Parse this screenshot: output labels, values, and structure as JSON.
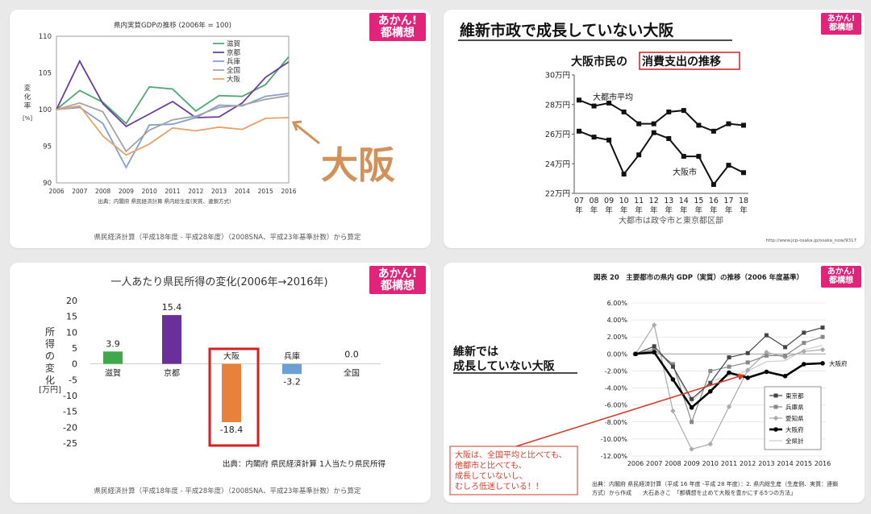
{
  "badge": {
    "line1": "あかん!",
    "line2": "都構想"
  },
  "chart_data": [
    {
      "type": "line",
      "title": "県内実質GDPの推移 (2006年 = 100)",
      "ylabel": "変化率",
      "yunit": "[%]",
      "x": [
        2006,
        2007,
        2008,
        2009,
        2010,
        2011,
        2012,
        2013,
        2014,
        2015,
        2016
      ],
      "ylim": [
        90,
        110
      ],
      "yticks": [
        90,
        95,
        100,
        105,
        110
      ],
      "series": [
        {
          "name": "滋賀",
          "color": "#4fa86f",
          "values": [
            100,
            102.6,
            101,
            98.1,
            103.1,
            102.8,
            99.8,
            101.9,
            101.8,
            103.4,
            107.2
          ]
        },
        {
          "name": "京都",
          "color": "#6a3d9a",
          "values": [
            100,
            106.6,
            100.8,
            97.7,
            99.4,
            101.1,
            98.9,
            99,
            100.9,
            104.4,
            106.5
          ]
        },
        {
          "name": "兵庫",
          "color": "#7fa1cf",
          "values": [
            100,
            100.3,
            98.1,
            92.1,
            97.9,
            98,
            98.9,
            100.6,
            100.5,
            101.8,
            102.2
          ]
        },
        {
          "name": "全国",
          "color": "#a3a3a3",
          "values": [
            100,
            100.9,
            99.7,
            94.3,
            97.2,
            98.6,
            99.1,
            100.3,
            100.6,
            101.4,
            101.9
          ]
        },
        {
          "name": "大阪",
          "color": "#e8a06b",
          "values": [
            100,
            100.5,
            96.4,
            93.8,
            95.3,
            97.5,
            97.1,
            97.6,
            97.3,
            98.8,
            98.9
          ]
        }
      ],
      "source": "出典：内閣府 県民経済計算 県内総生産(実質、連鎖方式)",
      "footer": "県民経済計算（平成18年度 - 平成28年度）（2008SNA、平成23年基準計数）から算定",
      "annotation": "大阪"
    },
    {
      "type": "line",
      "heading": "維新市政で成長していない大阪",
      "title_prefix": "大阪市民の",
      "title_highlight": "消費支出の推移",
      "x": [
        "07",
        "08",
        "09",
        "10",
        "11",
        "12",
        "13",
        "14",
        "15",
        "16",
        "17",
        "18"
      ],
      "year_suffix": "年",
      "ylim": [
        22,
        30
      ],
      "yticks": [
        "22万円",
        "24万円",
        "26万円",
        "28万円",
        "30万円"
      ],
      "ytick_values": [
        22,
        24,
        26,
        28,
        30
      ],
      "series": [
        {
          "name": "大都市平均",
          "values": [
            28.3,
            27.9,
            28.1,
            27.5,
            26.7,
            26.7,
            27.5,
            27.6,
            26.6,
            26.2,
            26.7,
            26.6
          ]
        },
        {
          "name": "大阪市",
          "values": [
            26.2,
            25.8,
            25.6,
            23.3,
            24.6,
            26.1,
            25.7,
            24.5,
            24.5,
            22.6,
            23.9,
            23.4
          ]
        }
      ],
      "caption": "大都市は政令市と東京都区部",
      "url": "http://www.jcp-osaka.jp/osaka_now/9317"
    },
    {
      "type": "bar",
      "title": "一人あたり県民所得の変化(2006年→2016年)",
      "ylabel": "所得の変化",
      "yunit": "[万円]",
      "categories": [
        "滋賀",
        "京都",
        "大阪",
        "兵庫",
        "全国"
      ],
      "values": [
        3.9,
        15.4,
        -18.4,
        -3.2,
        0.0
      ],
      "value_labels": [
        "3.9",
        "15.4",
        "-18.4",
        "-3.2",
        "0.0"
      ],
      "colors": [
        "#3fa84b",
        "#6a2f98",
        "#e8823a",
        "#6b9fd6",
        "#888888"
      ],
      "ylim": [
        -25,
        20
      ],
      "yticks": [
        20,
        15,
        10,
        5,
        0,
        -5,
        -10,
        -15,
        -20,
        -25
      ],
      "source": "出典：内閣府 県民経済計算 1人当たり県民所得",
      "footer": "県民経済計算（平成18年度 - 平成28年度）（2008SNA、平成23年基準計数）から算定"
    },
    {
      "type": "line",
      "title": "図表 20　主要都市の県内 GDP（実質）の推移（2006 年度基準）",
      "x": [
        2006,
        2007,
        2008,
        2009,
        2010,
        2011,
        2012,
        2013,
        2014,
        2015,
        2016
      ],
      "ylim": [
        -12,
        6
      ],
      "yticks": [
        "6.00%",
        "4.00%",
        "2.00%",
        "0.00%",
        "-2.00%",
        "-4.00%",
        "-6.00%",
        "-8.00%",
        "-10.00%",
        "-12.00%"
      ],
      "ytick_values": [
        6,
        4,
        2,
        0,
        -2,
        -4,
        -6,
        -8,
        -10,
        -12
      ],
      "series": [
        {
          "name": "東京都",
          "values": [
            0,
            0.9,
            -1.5,
            -5.3,
            -3.4,
            -0.4,
            0.1,
            2.2,
            0.8,
            2.5,
            3.1
          ]
        },
        {
          "name": "兵庫県",
          "values": [
            0,
            0.5,
            -1.2,
            -8.0,
            -2.0,
            -1.5,
            -1.0,
            -0.2,
            -0.2,
            1.3,
            2.0
          ]
        },
        {
          "name": "愛知県",
          "values": [
            0,
            3.4,
            -6.7,
            -11.2,
            -10.6,
            -6.2,
            -1.9,
            0.2,
            -0.4,
            0.3,
            0.5
          ]
        },
        {
          "name": "大阪府",
          "values": [
            0,
            0.2,
            -3.0,
            -6.3,
            -4.4,
            -2.2,
            -2.8,
            -2.1,
            -2.6,
            -1.2,
            -1.1
          ]
        },
        {
          "name": "全県計",
          "values": [
            0,
            0.6,
            -1.5,
            -5.7,
            -3.2,
            -2.6,
            -2.0,
            -0.9,
            -0.8,
            0.5,
            1.0
          ]
        }
      ],
      "heading": [
        "維新では",
        "成長していない大阪"
      ],
      "note": [
        "大阪は、全国平均と比べても、",
        "他都市と比べても、",
        "成長していないし、",
        "むしろ低迷している！！"
      ],
      "end_label": "大阪府",
      "source": [
        "出典：内閣府 県民経済計算（平成 16 年度 -平成 28 年度）：2. 県内総生産（生産側、実質：連鎖",
        "方式）から作成　　大石あきこ　「都構想を止めて大阪を豊かにする5つの方法」"
      ]
    }
  ]
}
